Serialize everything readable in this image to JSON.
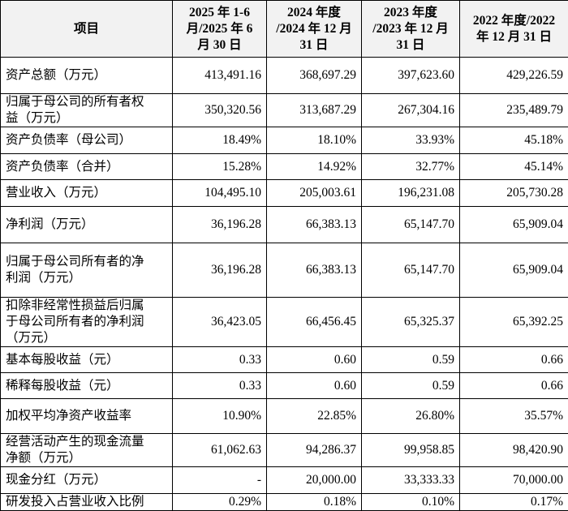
{
  "table": {
    "header": [
      [
        "项目"
      ],
      [
        "2025 年 1-6",
        "月/2025 年 6",
        "月 30 日"
      ],
      [
        "2024 年度",
        "/2024 年 12 月",
        "31 日"
      ],
      [
        "2023 年度",
        "/2023 年 12 月",
        "31 日"
      ],
      [
        "2022 年度/2022",
        "年 12 月 31 日"
      ]
    ],
    "rows": [
      {
        "label": [
          "资产总额（万元）"
        ],
        "values": [
          "413,491.16",
          "368,697.29",
          "397,623.60",
          "429,226.59"
        ]
      },
      {
        "label": [
          "归属于母公司的所有者权",
          "益（万元）"
        ],
        "values": [
          "350,320.56",
          "313,687.29",
          "267,304.16",
          "235,489.79"
        ]
      },
      {
        "label": [
          "资产负债率（母公司）"
        ],
        "values": [
          "18.49%",
          "18.10%",
          "33.93%",
          "45.18%"
        ]
      },
      {
        "label": [
          "资产负债率（合并）"
        ],
        "values": [
          "15.28%",
          "14.92%",
          "32.77%",
          "45.14%"
        ]
      },
      {
        "label": [
          "营业收入（万元）"
        ],
        "values": [
          "104,495.10",
          "205,003.61",
          "196,231.08",
          "205,730.28"
        ]
      },
      {
        "label": [
          "净利润（万元）"
        ],
        "values": [
          "36,196.28",
          "66,383.13",
          "65,147.70",
          "65,909.04"
        ]
      },
      {
        "label": [
          "归属于母公司所有者的净",
          "利润（万元）"
        ],
        "values": [
          "36,196.28",
          "66,383.13",
          "65,147.70",
          "65,909.04"
        ]
      },
      {
        "label": [
          "扣除非经常性损益后归属",
          "于母公司所有者的净利润",
          "（万元）"
        ],
        "values": [
          "36,423.05",
          "66,456.45",
          "65,325.37",
          "65,392.25"
        ]
      },
      {
        "label": [
          "基本每股收益（元）"
        ],
        "values": [
          "0.33",
          "0.60",
          "0.59",
          "0.66"
        ]
      },
      {
        "label": [
          "稀释每股收益（元）"
        ],
        "values": [
          "0.33",
          "0.60",
          "0.59",
          "0.66"
        ]
      },
      {
        "label": [
          "加权平均净资产收益率"
        ],
        "values": [
          "10.90%",
          "22.85%",
          "26.80%",
          "35.57%"
        ]
      },
      {
        "label": [
          "经营活动产生的现金流量",
          "净额（万元）"
        ],
        "values": [
          "61,062.63",
          "94,286.37",
          "99,958.85",
          "98,420.90"
        ]
      },
      {
        "label": [
          "现金分红（万元）"
        ],
        "values": [
          "-",
          "20,000.00",
          "33,333.33",
          "70,000.00"
        ]
      },
      {
        "label": [
          "研发投入占营业收入比例"
        ],
        "values": [
          "0.29%",
          "0.18%",
          "0.10%",
          "0.17%"
        ]
      }
    ]
  }
}
